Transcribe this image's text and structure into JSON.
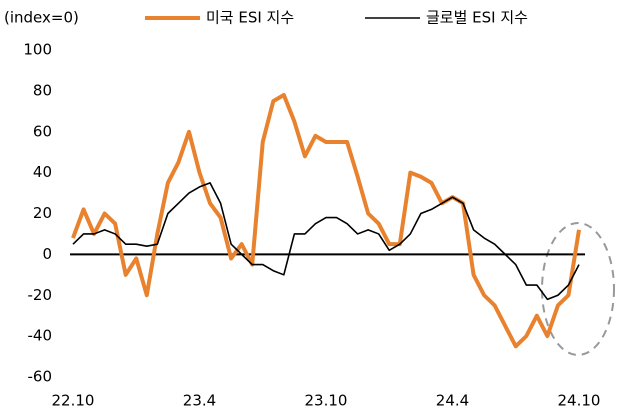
{
  "chart_data": {
    "type": "line",
    "y_label": "(index=0)",
    "x": [
      0,
      0.5,
      1,
      1.5,
      2,
      2.5,
      3,
      3.5,
      4,
      4.5,
      5,
      5.5,
      6,
      6.5,
      7,
      7.5,
      8,
      8.5,
      9,
      9.5,
      10,
      10.5,
      11,
      11.5,
      12,
      12.5,
      13,
      13.5,
      14,
      14.5,
      15,
      15.5,
      16,
      16.5,
      17,
      17.5,
      18,
      18.5,
      19,
      19.5,
      20,
      20.5,
      21,
      21.5,
      22,
      22.5,
      23,
      23.5,
      24
    ],
    "series": [
      {
        "name": "미국 ESI 지수",
        "color": "#e8822e",
        "width": 4,
        "values": [
          8,
          22,
          10,
          20,
          15,
          -10,
          -2,
          -20,
          10,
          35,
          45,
          60,
          40,
          25,
          18,
          -2,
          5,
          -5,
          55,
          75,
          78,
          65,
          48,
          58,
          55,
          55,
          55,
          38,
          20,
          15,
          5,
          5,
          40,
          38,
          35,
          25,
          28,
          25,
          -10,
          -20,
          -25,
          -35,
          -45,
          -40,
          -30,
          -40,
          -25,
          -20,
          12
        ]
      },
      {
        "name": "글로벌 ESI 지수",
        "color": "#000000",
        "width": 1.6,
        "values": [
          5,
          10,
          10,
          12,
          10,
          5,
          5,
          4,
          5,
          20,
          25,
          30,
          33,
          35,
          25,
          5,
          0,
          -5,
          -5,
          -8,
          -10,
          10,
          10,
          15,
          18,
          18,
          15,
          10,
          12,
          10,
          2,
          5,
          10,
          20,
          22,
          25,
          28,
          25,
          12,
          8,
          5,
          0,
          -5,
          -15,
          -15,
          -22,
          -20,
          -15,
          -5
        ]
      }
    ],
    "xlim": [
      0,
      24
    ],
    "xticks": [
      {
        "value": 0,
        "label": "22.10"
      },
      {
        "value": 6,
        "label": "23.4"
      },
      {
        "value": 12,
        "label": "23.10"
      },
      {
        "value": 18,
        "label": "24.4"
      },
      {
        "value": 24,
        "label": "24.10"
      }
    ],
    "ylim": [
      -60,
      100
    ],
    "yticks": [
      -60,
      -40,
      -20,
      0,
      20,
      40,
      60,
      80,
      100
    ],
    "grid": false
  }
}
